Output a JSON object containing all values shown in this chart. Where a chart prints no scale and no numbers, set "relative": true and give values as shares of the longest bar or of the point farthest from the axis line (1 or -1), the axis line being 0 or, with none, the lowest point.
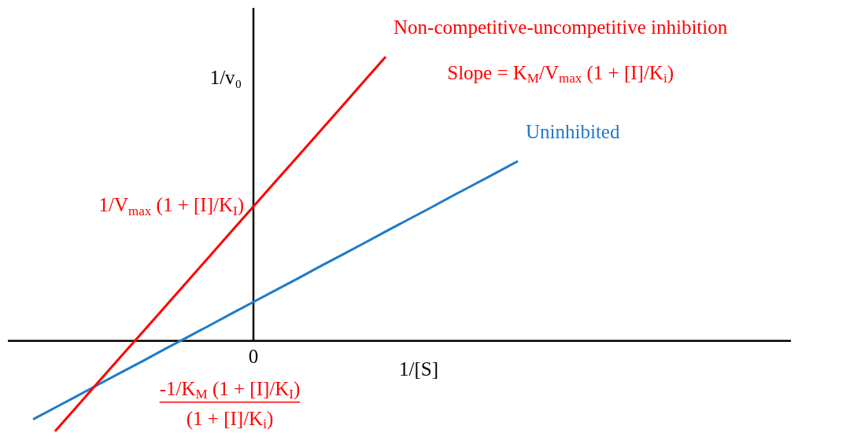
{
  "chart_data": {
    "type": "line",
    "relative": true,
    "xlabel": "1/[S]",
    "ylabel": "1/v₀",
    "marker": "none",
    "line_style": "solid",
    "categories": [
      null,
      null,
      null,
      null,
      null,
      null,
      null,
      null,
      null,
      null,
      null,
      null,
      null,
      null,
      null,
      null,
      null,
      null,
      null,
      null,
      null,
      null,
      null
    ],
    "series": [
      {
        "name": "Non-competitive-uncompetitive inhibition",
        "color": "#ff0000",
        "values": [
          null,
          -0.318,
          -0.23,
          -0.142,
          -0.054,
          0.033,
          0.121,
          0.209,
          0.297,
          0.385,
          0.473,
          0.561,
          0.648,
          0.736,
          0.824,
          0.912,
          1.0,
          null,
          null,
          null,
          null,
          null,
          null
        ]
      },
      {
        "name": "Uninhibited",
        "color": "#1f7bc8",
        "values": [
          -0.276,
          -0.235,
          -0.194,
          -0.152,
          -0.111,
          -0.07,
          -0.028,
          0.013,
          0.054,
          0.096,
          0.137,
          0.178,
          0.219,
          0.261,
          0.302,
          0.343,
          0.385,
          0.426,
          0.467,
          0.509,
          0.55,
          0.591,
          0.633
        ]
      }
    ],
    "annotations": [
      "Slope = K$_{M}$/V$_{max}$ (1 + [I]/K$_{i}$)",
      "0",
      "1/V$_{max}$ (1 + [I]/K$_{I}$)",
      "-1/K$_{M}$ (1 + [I]/K$_{I}$)\n(1 + [I]/K$_{i}$)"
    ]
  }
}
